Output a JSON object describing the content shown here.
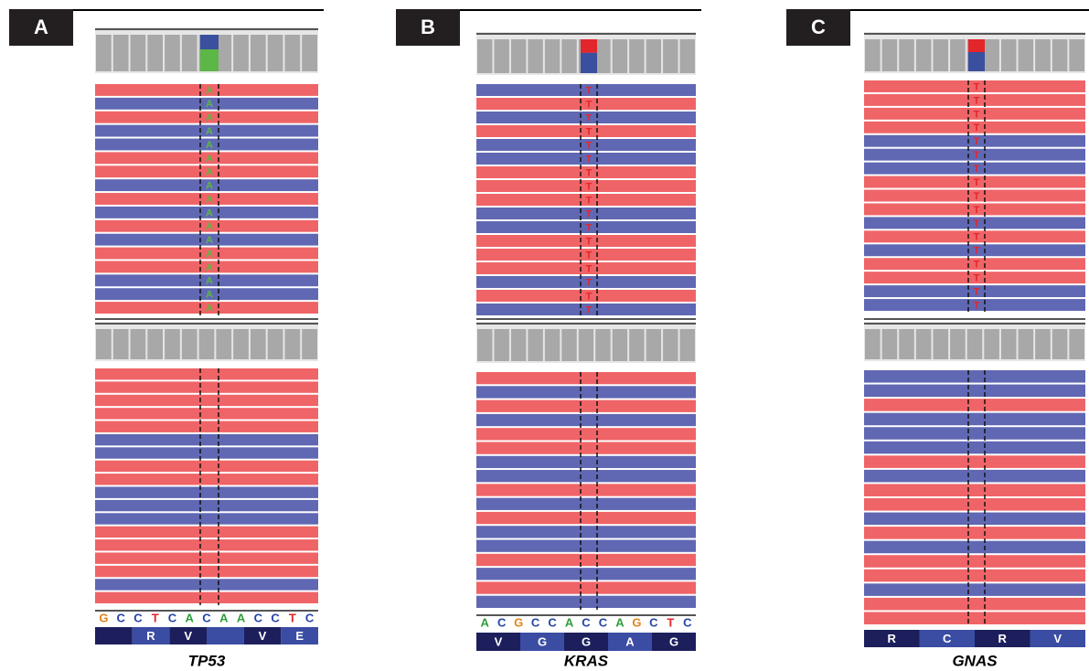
{
  "base_colors": {
    "A": "#2e9d3a",
    "C": "#2643a6",
    "G": "#e2841a",
    "T": "#e3262b"
  },
  "panels": [
    {
      "letter": "A",
      "gene": "TP53",
      "variant_base": "A",
      "variant_color": "#5cb747",
      "allele_colors": [
        "#3a4f9e",
        "#5cb747"
      ],
      "sequence": [
        "G",
        "C",
        "C",
        "T",
        "C",
        "A",
        "C",
        "A",
        "A",
        "C",
        "C",
        "T",
        "C"
      ],
      "amino_acids": [
        null,
        "R",
        "V",
        null,
        "V",
        "E"
      ],
      "top_reads": [
        "#ef6467",
        "#6068b3",
        "#ef6467",
        "#6068b3",
        "#6068b3",
        "#ef6467",
        "#ef6467",
        "#6068b3",
        "#ef6467",
        "#6068b3",
        "#ef6467",
        "#6068b3",
        "#ef6467",
        "#ef6467",
        "#6068b3",
        "#6068b3",
        "#ef6467"
      ],
      "bottom_reads": [
        "#ef6467",
        "#ef6467",
        "#ef6467",
        "#ef6467",
        "#ef6467",
        "#6068b3",
        "#6068b3",
        "#ef6467",
        "#ef6467",
        "#6068b3",
        "#6068b3",
        "#6068b3",
        "#ef6467",
        "#ef6467",
        "#ef6467",
        "#ef6467",
        "#6068b3",
        "#ef6467"
      ]
    },
    {
      "letter": "B",
      "gene": "KRAS",
      "variant_base": "T",
      "variant_color": "#e3262b",
      "allele_colors": [
        "#e3262b",
        "#3a4f9e"
      ],
      "sequence": [
        "A",
        "C",
        "G",
        "C",
        "C",
        "A",
        "C",
        "C",
        "A",
        "G",
        "C",
        "T",
        "C"
      ],
      "amino_acids": [
        "V",
        "G",
        "G",
        "A",
        "G"
      ],
      "top_reads": [
        "#6068b3",
        "#ef6467",
        "#6068b3",
        "#ef6467",
        "#6068b3",
        "#6068b3",
        "#ef6467",
        "#ef6467",
        "#ef6467",
        "#6068b3",
        "#6068b3",
        "#ef6467",
        "#ef6467",
        "#ef6467",
        "#6068b3",
        "#ef6467",
        "#6068b3"
      ],
      "bottom_reads": [
        "#ef6467",
        "#6068b3",
        "#ef6467",
        "#6068b3",
        "#ef6467",
        "#ef6467",
        "#6068b3",
        "#6068b3",
        "#ef6467",
        "#6068b3",
        "#ef6467",
        "#6068b3",
        "#6068b3",
        "#ef6467",
        "#6068b3",
        "#ef6467",
        "#6068b3"
      ]
    },
    {
      "letter": "C",
      "gene": "GNAS",
      "variant_base": "T",
      "variant_color": "#e3262b",
      "allele_colors": [
        "#e3262b",
        "#3a4f9e"
      ],
      "sequence": [],
      "amino_acids": [
        "R",
        "C",
        "R",
        "V"
      ],
      "top_reads": [
        "#ef6467",
        "#ef6467",
        "#ef6467",
        "#ef6467",
        "#6068b3",
        "#6068b3",
        "#6068b3",
        "#ef6467",
        "#ef6467",
        "#ef6467",
        "#6068b3",
        "#ef6467",
        "#6068b3",
        "#ef6467",
        "#ef6467",
        "#6068b3",
        "#6068b3"
      ],
      "bottom_reads": [
        "#6068b3",
        "#6068b3",
        "#ef6467",
        "#6068b3",
        "#6068b3",
        "#6068b3",
        "#ef6467",
        "#6068b3",
        "#ef6467",
        "#ef6467",
        "#6068b3",
        "#ef6467",
        "#6068b3",
        "#ef6467",
        "#ef6467",
        "#6068b3",
        "#ef6467",
        "#ef6467"
      ]
    }
  ]
}
